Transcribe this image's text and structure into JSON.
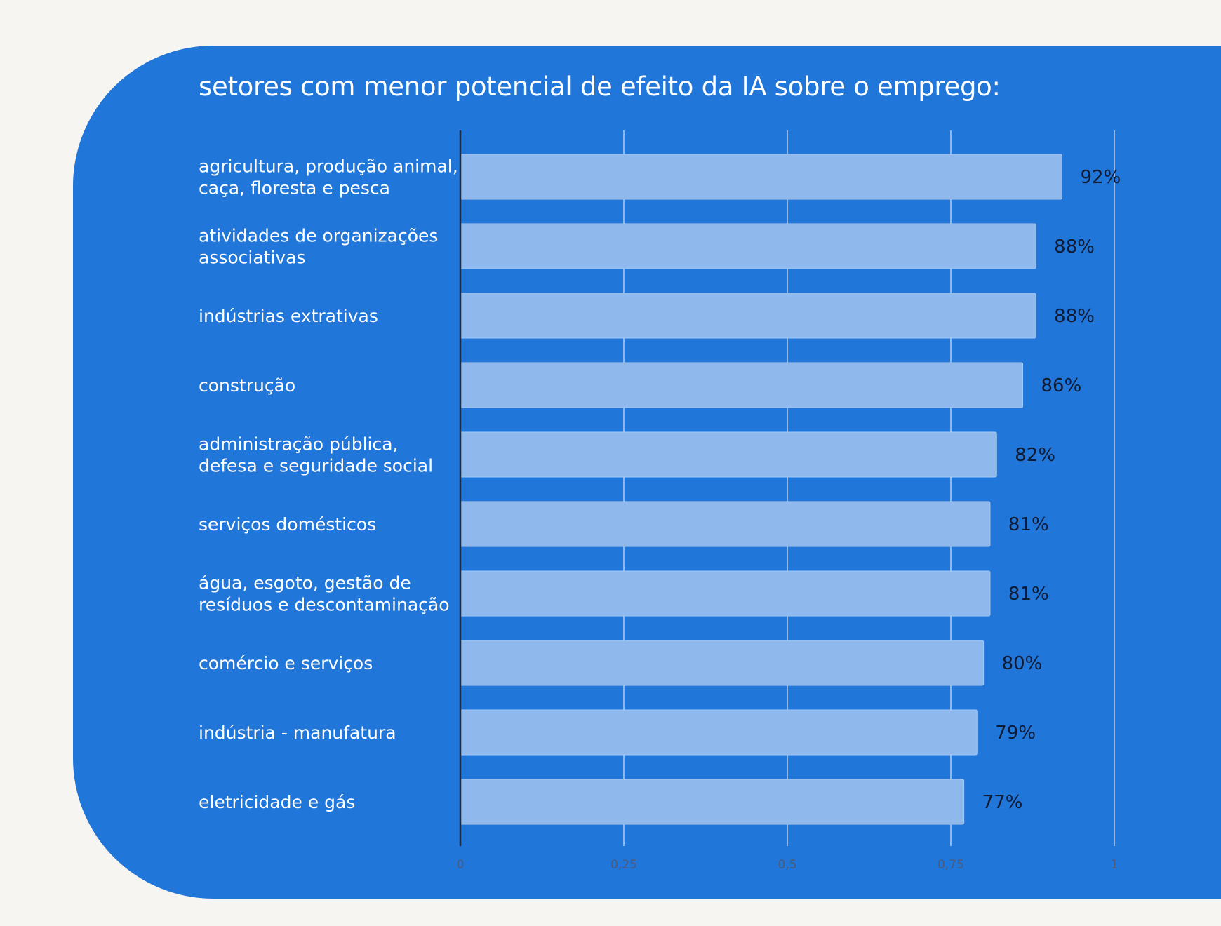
{
  "chart_data": {
    "type": "bar",
    "orientation": "horizontal",
    "title": "setores com menor potencial de efeito da IA sobre o emprego:",
    "categories": [
      [
        "agricultura, produção animal,",
        "caça, floresta e pesca"
      ],
      [
        "atividades de organizações",
        "associativas"
      ],
      [
        "indústrias extrativas"
      ],
      [
        "construção"
      ],
      [
        "administração pública,",
        "defesa e seguridade social"
      ],
      [
        "serviços domésticos"
      ],
      [
        "água, esgoto, gestão de",
        "resíduos e descontaminação"
      ],
      [
        "comércio e serviços"
      ],
      [
        "indústria - manufatura"
      ],
      [
        "eletricidade e gás"
      ]
    ],
    "values": [
      0.92,
      0.88,
      0.88,
      0.86,
      0.82,
      0.81,
      0.81,
      0.8,
      0.79,
      0.77
    ],
    "data_labels": [
      "92%",
      "88%",
      "88%",
      "86%",
      "82%",
      "81%",
      "81%",
      "80%",
      "79%",
      "77%"
    ],
    "xlim": [
      0,
      1
    ],
    "xticks": [
      0,
      0.25,
      0.5,
      0.75,
      1
    ],
    "xtick_labels": [
      "0",
      "0,25",
      "0,5",
      "0,75",
      "1"
    ],
    "grid": true,
    "legend": "none",
    "colors": {
      "bar": "#8fb8ec",
      "panel": "#2176da",
      "background": "#f6f5f1",
      "category_text": "#ffffff",
      "value_text": "#0f1b33",
      "tick_text": "#4a5a78",
      "grid": "#c9dcf4",
      "axis": "#1b2a45"
    }
  }
}
